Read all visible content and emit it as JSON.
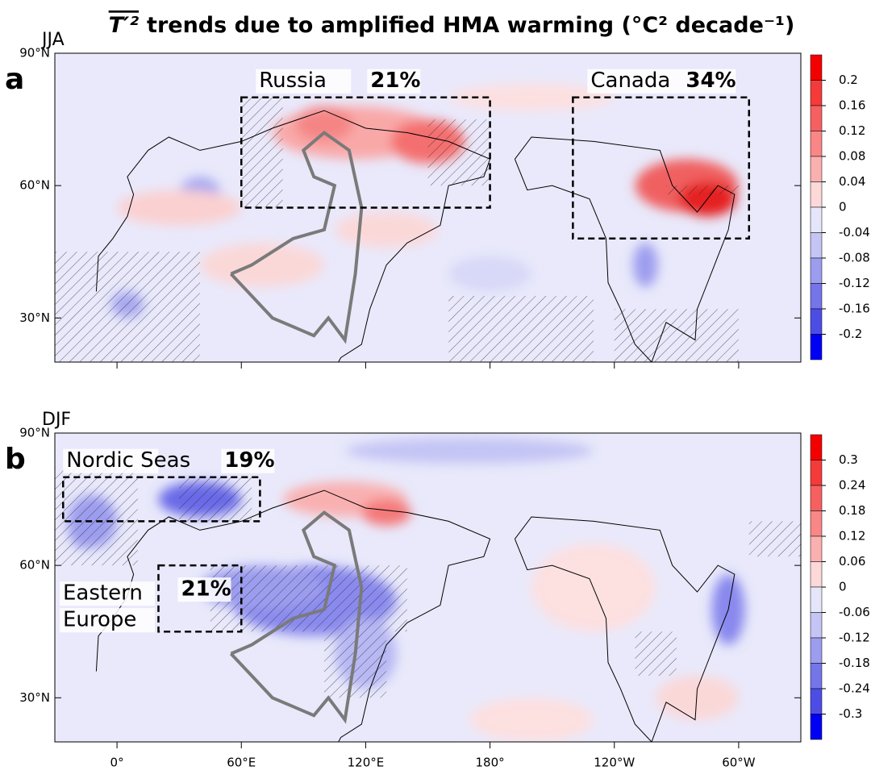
{
  "title_symbol": "T′²",
  "title": "trends due to amplified HMA warming (°C² decade⁻¹)",
  "map": {
    "xlim": [
      -30,
      330
    ],
    "ylim": [
      20,
      90
    ],
    "lon_ticks": [
      {
        "value": 0,
        "label": "0°"
      },
      {
        "value": 60,
        "label": "60°E"
      },
      {
        "value": 120,
        "label": "120°E"
      },
      {
        "value": 180,
        "label": "180°"
      },
      {
        "value": 240,
        "label": "120°W"
      },
      {
        "value": 300,
        "label": "60°W"
      }
    ]
  },
  "panels": [
    {
      "label": "a",
      "season": "JJA",
      "lat_ticks": [
        {
          "value": 90,
          "label": "90°N"
        },
        {
          "value": 60,
          "label": "60°N"
        },
        {
          "value": 30,
          "label": "30°N"
        }
      ],
      "colorbar": {
        "levels": [
          0.2,
          0.16,
          0.12,
          0.08,
          0.04,
          0,
          -0.04,
          -0.08,
          -0.12,
          -0.16,
          -0.2
        ],
        "colors": [
          "#f40000",
          "#f53a3a",
          "#f76060",
          "#f98787",
          "#fbb0b0",
          "#fdd8d8",
          "#e6e6fb",
          "#c5c5f5",
          "#9d9def",
          "#7575ea",
          "#4d4de6",
          "#0000f5"
        ]
      },
      "boxes": [
        {
          "name": [
            "Russia"
          ],
          "percent": "21%",
          "lon": [
            60,
            180
          ],
          "lat": [
            55,
            80
          ]
        },
        {
          "name": [
            "Canada"
          ],
          "percent": "34%",
          "lon": [
            220,
            305
          ],
          "lat": [
            48,
            80
          ]
        }
      ]
    },
    {
      "label": "b",
      "season": "DJF",
      "lat_ticks": [
        {
          "value": 90,
          "label": "90°N"
        },
        {
          "value": 60,
          "label": "60°N"
        },
        {
          "value": 30,
          "label": "30°N"
        }
      ],
      "colorbar": {
        "levels": [
          0.3,
          0.24,
          0.18,
          0.12,
          0.06,
          0,
          -0.06,
          -0.12,
          -0.18,
          -0.24,
          -0.3
        ],
        "colors": [
          "#f40000",
          "#f53a3a",
          "#f76060",
          "#f98787",
          "#fbb0b0",
          "#fdd8d8",
          "#e6e6fb",
          "#c5c5f5",
          "#9d9def",
          "#7575ea",
          "#4d4de6",
          "#0000f5"
        ]
      },
      "boxes": [
        {
          "name": [
            "Nordic Seas"
          ],
          "percent": "19%",
          "lon": [
            -26,
            69
          ],
          "lat": [
            70,
            80
          ]
        },
        {
          "name": [
            "Eastern",
            "Europe"
          ],
          "percent": "21%",
          "lon": [
            20,
            60
          ],
          "lat": [
            45,
            60
          ]
        }
      ]
    }
  ]
}
